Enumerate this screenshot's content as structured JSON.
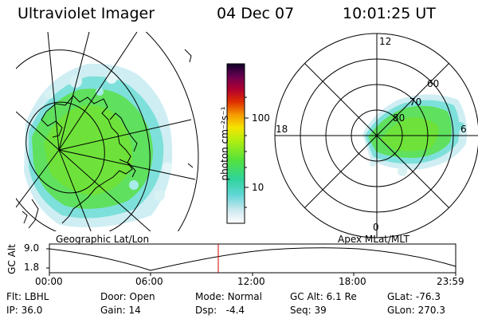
{
  "header": {
    "instrument": "Ultraviolet Imager",
    "date": "04 Dec 07",
    "time": "10:01:25 UT"
  },
  "colorbar": {
    "unit_label": "photon cm⁻²s⁻¹",
    "ticks": [
      "100",
      "10"
    ]
  },
  "left_panel": {
    "label": "Geographic Lat/Lon"
  },
  "right_panel": {
    "label": "Apex MLat/MLT",
    "hour_labels": [
      "12",
      "18",
      "6",
      "0"
    ],
    "lat_labels": [
      "60",
      "70",
      "80"
    ]
  },
  "altitude_plot": {
    "ylabel": "GC Alt",
    "yticks": [
      "9.0",
      "1.8"
    ],
    "xticks": [
      "00:00",
      "06:00",
      "12:00",
      "18:00",
      "23:59"
    ],
    "current_time_marker": "10:01:25",
    "line_color": "#000000",
    "marker_color": "#cc0000"
  },
  "status": {
    "row1": [
      {
        "label": "Flt:",
        "value": "LBHL"
      },
      {
        "label": "Door:",
        "value": "Open"
      },
      {
        "label": "Mode:",
        "value": "Normal"
      },
      {
        "label": "GC Alt:",
        "value": "6.1 Re"
      },
      {
        "label": "GLat:",
        "value": "-76.3"
      }
    ],
    "row2": [
      {
        "label": "IP:",
        "value": "36.0"
      },
      {
        "label": "Gain:",
        "value": "14"
      },
      {
        "label": "Dsp:",
        "value": "-4.4"
      },
      {
        "label": "Seq:",
        "value": "39"
      },
      {
        "label": "GLon:",
        "value": "270.3"
      }
    ]
  }
}
